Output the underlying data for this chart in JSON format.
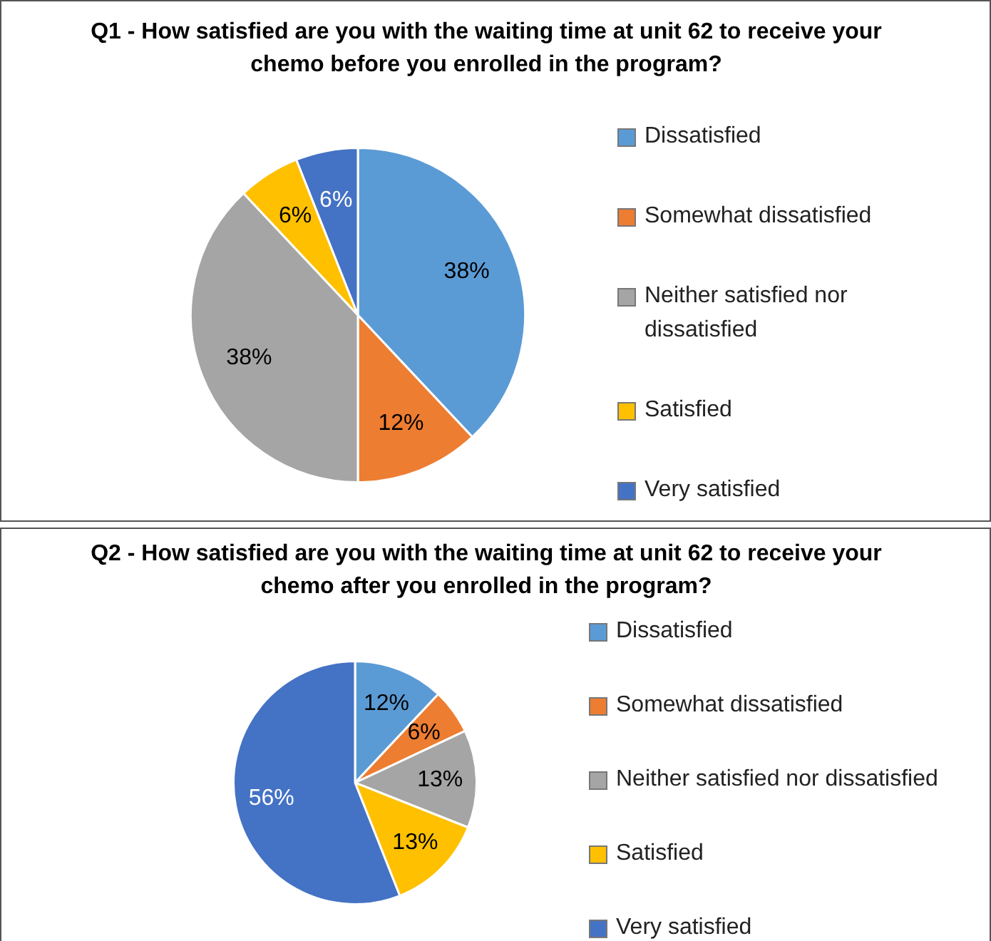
{
  "chart_data": [
    {
      "type": "pie",
      "title": "Q1 - How satisfied are you with the waiting time at unit 62 to receive your chemo before you enrolled in the program?",
      "categories": [
        "Dissatisfied",
        "Somewhat dissatisfied",
        "Neither satisfied nor dissatisfied",
        "Satisfied",
        "Very satisfied"
      ],
      "values": [
        38,
        12,
        38,
        6,
        6
      ],
      "value_labels": [
        "38%",
        "12%",
        "38%",
        "6%",
        "6%"
      ],
      "colors": [
        "#5b9bd5",
        "#ed7d31",
        "#a5a5a5",
        "#ffc000",
        "#4472c4"
      ],
      "legend": "right"
    },
    {
      "type": "pie",
      "title": "Q2 - How satisfied are you with the waiting time at unit 62 to receive your chemo after you enrolled in the program?",
      "categories": [
        "Dissatisfied",
        "Somewhat dissatisfied",
        "Neither satisfied nor dissatisfied",
        "Satisfied",
        "Very satisfied"
      ],
      "values": [
        12,
        6,
        13,
        13,
        56
      ],
      "value_labels": [
        "12%",
        "6%",
        "13%",
        "13%",
        "56%"
      ],
      "colors": [
        "#5b9bd5",
        "#ed7d31",
        "#a5a5a5",
        "#ffc000",
        "#4472c4"
      ],
      "legend": "right"
    }
  ]
}
